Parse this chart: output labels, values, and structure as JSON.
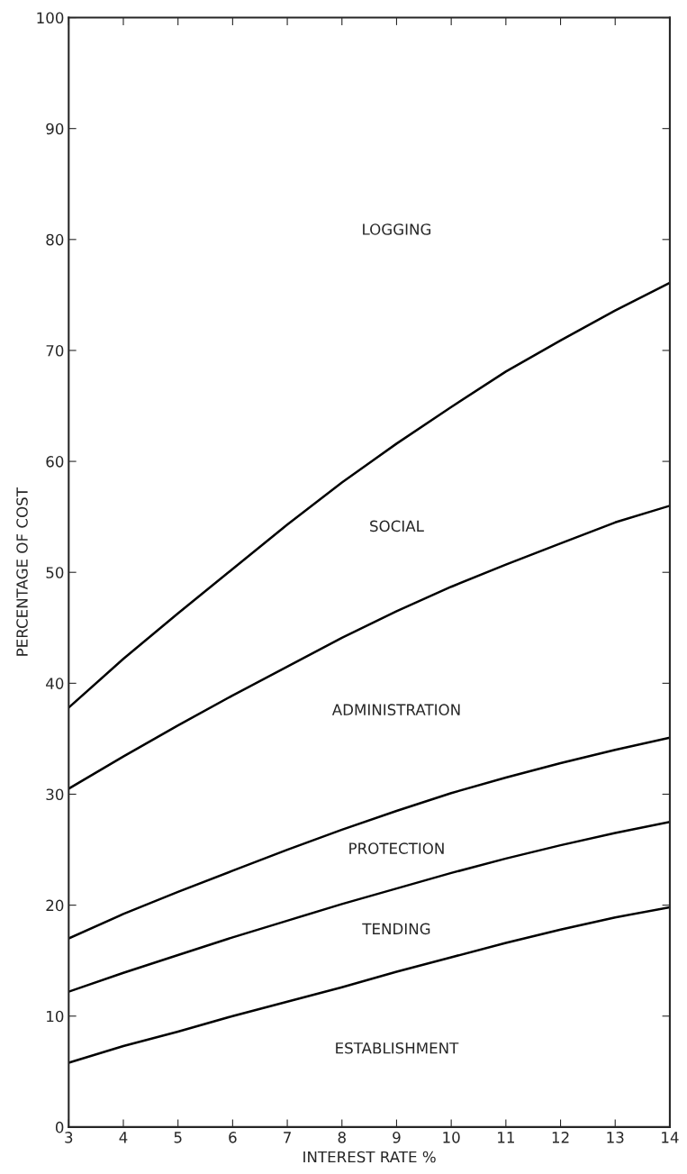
{
  "chart_data": {
    "type": "line",
    "xlabel": "INTEREST RATE %",
    "ylabel": "PERCENTAGE OF COST",
    "x": [
      3,
      4,
      5,
      6,
      7,
      8,
      9,
      10,
      11,
      12,
      13,
      14
    ],
    "series": [
      {
        "color": "#000000",
        "values": [
          5.8,
          7.3,
          8.6,
          10,
          11.3,
          12.6,
          14,
          15.3,
          16.6,
          17.8,
          18.9,
          19.8
        ]
      },
      {
        "color": "#000000",
        "values": [
          12.2,
          13.9,
          15.5,
          17.1,
          18.6,
          20.1,
          21.5,
          22.9,
          24.2,
          25.4,
          26.5,
          27.5
        ]
      },
      {
        "color": "#000000",
        "values": [
          17,
          19.2,
          21.2,
          23.1,
          25,
          26.8,
          28.5,
          30.1,
          31.5,
          32.8,
          34,
          35.1
        ]
      },
      {
        "color": "#000000",
        "values": [
          30.5,
          33.4,
          36.2,
          38.9,
          41.5,
          44.1,
          46.5,
          48.7,
          50.7,
          52.6,
          54.5,
          56
        ]
      },
      {
        "color": "#000000",
        "values": [
          37.8,
          42.2,
          46.3,
          50.3,
          54.3,
          58.1,
          61.6,
          64.9,
          68.1,
          70.9,
          73.6,
          76.1
        ]
      }
    ],
    "annotations": [
      "LOGGING",
      "SOCIAL",
      "ADMINISTRATION",
      "PROTECTION",
      "TENDING",
      "ESTABLISHMENT"
    ],
    "xlim": [
      3,
      14
    ],
    "xticks": [
      3,
      4,
      5,
      6,
      7,
      8,
      9,
      10,
      11,
      12,
      13,
      14
    ],
    "ylim": [
      0,
      100
    ],
    "yticks": [
      0,
      10,
      20,
      30,
      40,
      50,
      60,
      70,
      80,
      90,
      100
    ],
    "grid": false,
    "legend": false,
    "marker": "none",
    "line_style": "solid"
  }
}
